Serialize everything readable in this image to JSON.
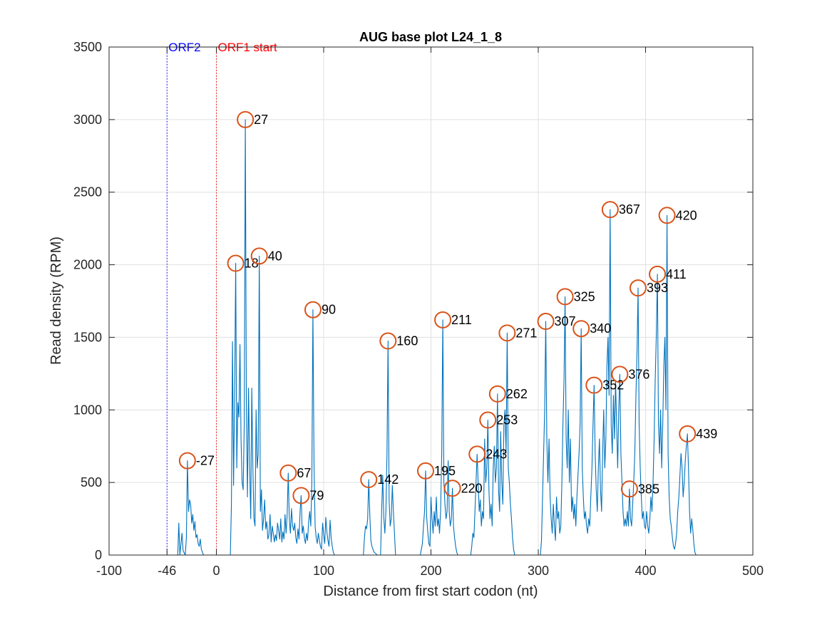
{
  "chart_data": {
    "type": "line",
    "title": "AUG base plot L24_1_8",
    "xlabel": "Distance from first start codon (nt)",
    "ylabel": "Read density (RPM)",
    "xlim": [
      -100,
      500
    ],
    "ylim": [
      0,
      3500
    ],
    "xticks": [
      -100,
      -46,
      0,
      100,
      200,
      300,
      400,
      500
    ],
    "xtick_labels": [
      "-100",
      "-46",
      "0",
      "100",
      "200",
      "300",
      "400",
      "500"
    ],
    "yticks": [
      0,
      500,
      1000,
      1500,
      2000,
      2500,
      3000,
      3500
    ],
    "grid": true,
    "colors": {
      "trace": "#0072BD",
      "marker": "#D95319",
      "orf2": "#0000FF",
      "orf1": "#FF0000"
    },
    "vertical_lines": [
      {
        "x": -46,
        "label": "ORF2",
        "color": "#0000FF"
      },
      {
        "x": 0,
        "label": "ORF1 start",
        "color": "#FF0000"
      }
    ],
    "peaks": [
      {
        "x": -27,
        "y": 650,
        "label": "-27"
      },
      {
        "x": 18,
        "y": 2010,
        "label": "18"
      },
      {
        "x": 27,
        "y": 3000,
        "label": "27"
      },
      {
        "x": 40,
        "y": 2060,
        "label": "40"
      },
      {
        "x": 67,
        "y": 565,
        "label": "67"
      },
      {
        "x": 79,
        "y": 410,
        "label": "79"
      },
      {
        "x": 90,
        "y": 1690,
        "label": "90"
      },
      {
        "x": 142,
        "y": 520,
        "label": "142"
      },
      {
        "x": 160,
        "y": 1475,
        "label": "160"
      },
      {
        "x": 195,
        "y": 580,
        "label": "195"
      },
      {
        "x": 211,
        "y": 1620,
        "label": "211"
      },
      {
        "x": 220,
        "y": 460,
        "label": "220"
      },
      {
        "x": 243,
        "y": 695,
        "label": "243"
      },
      {
        "x": 253,
        "y": 930,
        "label": "253"
      },
      {
        "x": 262,
        "y": 1110,
        "label": "262"
      },
      {
        "x": 271,
        "y": 1530,
        "label": "271"
      },
      {
        "x": 307,
        "y": 1610,
        "label": "307"
      },
      {
        "x": 325,
        "y": 1780,
        "label": "325"
      },
      {
        "x": 340,
        "y": 1560,
        "label": "340"
      },
      {
        "x": 352,
        "y": 1170,
        "label": "352"
      },
      {
        "x": 367,
        "y": 2380,
        "label": "367"
      },
      {
        "x": 376,
        "y": 1245,
        "label": "376"
      },
      {
        "x": 385,
        "y": 455,
        "label": "385"
      },
      {
        "x": 393,
        "y": 1840,
        "label": "393"
      },
      {
        "x": 411,
        "y": 1935,
        "label": "411"
      },
      {
        "x": 420,
        "y": 2340,
        "label": "420"
      },
      {
        "x": 439,
        "y": 835,
        "label": "439"
      }
    ],
    "trace": [
      [
        -100,
        0
      ],
      [
        -46,
        0
      ],
      [
        -36,
        0
      ],
      [
        -35,
        220
      ],
      [
        -34,
        0
      ],
      [
        -32,
        150
      ],
      [
        -31,
        30
      ],
      [
        -29,
        0
      ],
      [
        -28,
        120
      ],
      [
        -27,
        650
      ],
      [
        -26,
        300
      ],
      [
        -25,
        380
      ],
      [
        -24,
        350
      ],
      [
        -23,
        220
      ],
      [
        -22,
        280
      ],
      [
        -21,
        170
      ],
      [
        -20,
        230
      ],
      [
        -19,
        120
      ],
      [
        -18,
        140
      ],
      [
        -17,
        80
      ],
      [
        -16,
        60
      ],
      [
        -15,
        110
      ],
      [
        -14,
        40
      ],
      [
        -13,
        20
      ],
      [
        -12,
        0
      ],
      [
        0,
        0
      ],
      [
        13,
        0
      ],
      [
        14,
        350
      ],
      [
        15,
        1470
      ],
      [
        16,
        480
      ],
      [
        17,
        1100
      ],
      [
        18,
        2010
      ],
      [
        19,
        600
      ],
      [
        20,
        1050
      ],
      [
        21,
        950
      ],
      [
        22,
        1450
      ],
      [
        23,
        800
      ],
      [
        24,
        500
      ],
      [
        25,
        450
      ],
      [
        26,
        900
      ],
      [
        27,
        3000
      ],
      [
        28,
        1000
      ],
      [
        29,
        400
      ],
      [
        30,
        1150
      ],
      [
        31,
        600
      ],
      [
        32,
        250
      ],
      [
        33,
        1150
      ],
      [
        34,
        600
      ],
      [
        35,
        250
      ],
      [
        36,
        200
      ],
      [
        37,
        1000
      ],
      [
        38,
        600
      ],
      [
        39,
        700
      ],
      [
        40,
        2060
      ],
      [
        41,
        300
      ],
      [
        42,
        450
      ],
      [
        43,
        170
      ],
      [
        44,
        250
      ],
      [
        45,
        380
      ],
      [
        46,
        180
      ],
      [
        47,
        230
      ],
      [
        48,
        110
      ],
      [
        49,
        140
      ],
      [
        50,
        280
      ],
      [
        51,
        90
      ],
      [
        52,
        200
      ],
      [
        53,
        150
      ],
      [
        54,
        90
      ],
      [
        55,
        140
      ],
      [
        56,
        100
      ],
      [
        57,
        220
      ],
      [
        58,
        170
      ],
      [
        59,
        110
      ],
      [
        60,
        250
      ],
      [
        61,
        90
      ],
      [
        62,
        160
      ],
      [
        63,
        110
      ],
      [
        64,
        280
      ],
      [
        65,
        150
      ],
      [
        66,
        280
      ],
      [
        67,
        565
      ],
      [
        68,
        250
      ],
      [
        69,
        150
      ],
      [
        70,
        320
      ],
      [
        71,
        200
      ],
      [
        72,
        170
      ],
      [
        73,
        220
      ],
      [
        74,
        120
      ],
      [
        75,
        80
      ],
      [
        76,
        180
      ],
      [
        77,
        110
      ],
      [
        78,
        300
      ],
      [
        79,
        410
      ],
      [
        80,
        150
      ],
      [
        81,
        200
      ],
      [
        82,
        120
      ],
      [
        83,
        80
      ],
      [
        84,
        150
      ],
      [
        85,
        100
      ],
      [
        86,
        230
      ],
      [
        87,
        300
      ],
      [
        88,
        200
      ],
      [
        89,
        500
      ],
      [
        90,
        1690
      ],
      [
        91,
        600
      ],
      [
        92,
        200
      ],
      [
        93,
        120
      ],
      [
        94,
        80
      ],
      [
        95,
        150
      ],
      [
        96,
        100
      ],
      [
        97,
        60
      ],
      [
        98,
        40
      ],
      [
        99,
        220
      ],
      [
        100,
        140
      ],
      [
        101,
        80
      ],
      [
        102,
        260
      ],
      [
        103,
        160
      ],
      [
        104,
        100
      ],
      [
        105,
        60
      ],
      [
        106,
        240
      ],
      [
        107,
        120
      ],
      [
        108,
        60
      ],
      [
        109,
        20
      ],
      [
        110,
        0
      ],
      [
        120,
        0
      ],
      [
        130,
        0
      ],
      [
        137,
        0
      ],
      [
        138,
        120
      ],
      [
        139,
        200
      ],
      [
        140,
        180
      ],
      [
        141,
        250
      ],
      [
        142,
        520
      ],
      [
        143,
        280
      ],
      [
        144,
        100
      ],
      [
        145,
        60
      ],
      [
        146,
        40
      ],
      [
        147,
        20
      ],
      [
        150,
        0
      ],
      [
        153,
        0
      ],
      [
        154,
        300
      ],
      [
        155,
        550
      ],
      [
        156,
        260
      ],
      [
        157,
        150
      ],
      [
        158,
        300
      ],
      [
        159,
        700
      ],
      [
        160,
        1475
      ],
      [
        161,
        380
      ],
      [
        162,
        200
      ],
      [
        163,
        250
      ],
      [
        164,
        480
      ],
      [
        165,
        300
      ],
      [
        166,
        150
      ],
      [
        167,
        0
      ],
      [
        175,
        0
      ],
      [
        185,
        0
      ],
      [
        190,
        0
      ],
      [
        191,
        40
      ],
      [
        192,
        80
      ],
      [
        193,
        200
      ],
      [
        194,
        300
      ],
      [
        195,
        580
      ],
      [
        196,
        260
      ],
      [
        197,
        160
      ],
      [
        198,
        80
      ],
      [
        199,
        60
      ],
      [
        200,
        400
      ],
      [
        201,
        250
      ],
      [
        202,
        150
      ],
      [
        203,
        300
      ],
      [
        204,
        200
      ],
      [
        205,
        400
      ],
      [
        206,
        200
      ],
      [
        207,
        250
      ],
      [
        208,
        150
      ],
      [
        209,
        300
      ],
      [
        210,
        700
      ],
      [
        211,
        1620
      ],
      [
        212,
        500
      ],
      [
        213,
        350
      ],
      [
        214,
        250
      ],
      [
        215,
        300
      ],
      [
        216,
        650
      ],
      [
        217,
        300
      ],
      [
        218,
        200
      ],
      [
        219,
        250
      ],
      [
        220,
        460
      ],
      [
        221,
        200
      ],
      [
        222,
        120
      ],
      [
        223,
        60
      ],
      [
        224,
        20
      ],
      [
        225,
        0
      ],
      [
        230,
        0
      ],
      [
        237,
        0
      ],
      [
        238,
        60
      ],
      [
        239,
        150
      ],
      [
        240,
        120
      ],
      [
        241,
        300
      ],
      [
        242,
        500
      ],
      [
        243,
        695
      ],
      [
        244,
        500
      ],
      [
        245,
        300
      ],
      [
        246,
        380
      ],
      [
        247,
        200
      ],
      [
        248,
        300
      ],
      [
        249,
        250
      ],
      [
        250,
        800
      ],
      [
        251,
        500
      ],
      [
        252,
        600
      ],
      [
        253,
        930
      ],
      [
        254,
        450
      ],
      [
        255,
        250
      ],
      [
        256,
        350
      ],
      [
        257,
        200
      ],
      [
        258,
        600
      ],
      [
        259,
        750
      ],
      [
        260,
        500
      ],
      [
        261,
        600
      ],
      [
        262,
        1110
      ],
      [
        263,
        450
      ],
      [
        264,
        300
      ],
      [
        265,
        850
      ],
      [
        266,
        500
      ],
      [
        267,
        350
      ],
      [
        268,
        900
      ],
      [
        269,
        1000
      ],
      [
        270,
        700
      ],
      [
        271,
        1530
      ],
      [
        272,
        600
      ],
      [
        273,
        500
      ],
      [
        274,
        350
      ],
      [
        275,
        250
      ],
      [
        276,
        120
      ],
      [
        277,
        40
      ],
      [
        278,
        0
      ],
      [
        290,
        0
      ],
      [
        302,
        0
      ],
      [
        303,
        100
      ],
      [
        304,
        400
      ],
      [
        305,
        700
      ],
      [
        306,
        1000
      ],
      [
        307,
        1610
      ],
      [
        308,
        800
      ],
      [
        309,
        500
      ],
      [
        310,
        800
      ],
      [
        311,
        400
      ],
      [
        312,
        250
      ],
      [
        313,
        150
      ],
      [
        314,
        350
      ],
      [
        315,
        200
      ],
      [
        316,
        100
      ],
      [
        317,
        400
      ],
      [
        318,
        250
      ],
      [
        319,
        300
      ],
      [
        320,
        150
      ],
      [
        321,
        200
      ],
      [
        322,
        500
      ],
      [
        323,
        900
      ],
      [
        324,
        1200
      ],
      [
        325,
        1780
      ],
      [
        326,
        800
      ],
      [
        327,
        600
      ],
      [
        328,
        1000
      ],
      [
        329,
        500
      ],
      [
        330,
        800
      ],
      [
        331,
        300
      ],
      [
        332,
        400
      ],
      [
        333,
        250
      ],
      [
        334,
        350
      ],
      [
        335,
        200
      ],
      [
        336,
        400
      ],
      [
        337,
        550
      ],
      [
        338,
        700
      ],
      [
        339,
        900
      ],
      [
        340,
        1560
      ],
      [
        341,
        600
      ],
      [
        342,
        400
      ],
      [
        343,
        250
      ],
      [
        344,
        300
      ],
      [
        345,
        200
      ],
      [
        346,
        150
      ],
      [
        347,
        250
      ],
      [
        348,
        200
      ],
      [
        349,
        400
      ],
      [
        350,
        600
      ],
      [
        351,
        900
      ],
      [
        352,
        1170
      ],
      [
        353,
        700
      ],
      [
        354,
        450
      ],
      [
        355,
        300
      ],
      [
        356,
        600
      ],
      [
        357,
        800
      ],
      [
        358,
        450
      ],
      [
        359,
        300
      ],
      [
        360,
        700
      ],
      [
        361,
        1000
      ],
      [
        362,
        600
      ],
      [
        363,
        800
      ],
      [
        364,
        1300
      ],
      [
        365,
        1500
      ],
      [
        366,
        1100
      ],
      [
        367,
        2380
      ],
      [
        368,
        900
      ],
      [
        369,
        700
      ],
      [
        370,
        1100
      ],
      [
        371,
        800
      ],
      [
        372,
        1200
      ],
      [
        373,
        900
      ],
      [
        374,
        600
      ],
      [
        375,
        1000
      ],
      [
        376,
        1245
      ],
      [
        377,
        700
      ],
      [
        378,
        500
      ],
      [
        379,
        300
      ],
      [
        380,
        200
      ],
      [
        381,
        250
      ],
      [
        382,
        200
      ],
      [
        383,
        300
      ],
      [
        384,
        200
      ],
      [
        385,
        455
      ],
      [
        386,
        250
      ],
      [
        387,
        200
      ],
      [
        388,
        350
      ],
      [
        389,
        500
      ],
      [
        390,
        700
      ],
      [
        391,
        1100
      ],
      [
        392,
        1400
      ],
      [
        393,
        1840
      ],
      [
        394,
        900
      ],
      [
        395,
        600
      ],
      [
        396,
        400
      ],
      [
        397,
        250
      ],
      [
        398,
        300
      ],
      [
        399,
        200
      ],
      [
        400,
        180
      ],
      [
        401,
        300
      ],
      [
        402,
        200
      ],
      [
        403,
        150
      ],
      [
        404,
        250
      ],
      [
        405,
        400
      ],
      [
        406,
        300
      ],
      [
        407,
        500
      ],
      [
        408,
        800
      ],
      [
        409,
        1200
      ],
      [
        410,
        1500
      ],
      [
        411,
        1935
      ],
      [
        412,
        900
      ],
      [
        413,
        700
      ],
      [
        414,
        1000
      ],
      [
        415,
        600
      ],
      [
        416,
        900
      ],
      [
        417,
        1300
      ],
      [
        418,
        1500
      ],
      [
        419,
        1000
      ],
      [
        420,
        2340
      ],
      [
        421,
        700
      ],
      [
        422,
        400
      ],
      [
        423,
        250
      ],
      [
        424,
        200
      ],
      [
        425,
        120
      ],
      [
        426,
        60
      ],
      [
        427,
        40
      ],
      [
        428,
        80
      ],
      [
        429,
        150
      ],
      [
        430,
        300
      ],
      [
        431,
        400
      ],
      [
        432,
        550
      ],
      [
        433,
        700
      ],
      [
        434,
        600
      ],
      [
        435,
        400
      ],
      [
        436,
        500
      ],
      [
        437,
        650
      ],
      [
        438,
        750
      ],
      [
        439,
        835
      ],
      [
        440,
        600
      ],
      [
        441,
        300
      ],
      [
        442,
        150
      ],
      [
        443,
        250
      ],
      [
        444,
        180
      ],
      [
        445,
        80
      ],
      [
        446,
        20
      ],
      [
        447,
        0
      ],
      [
        460,
        0
      ],
      [
        500,
        0
      ]
    ]
  }
}
